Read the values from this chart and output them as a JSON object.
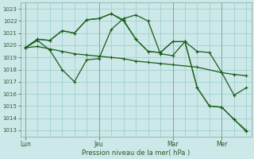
{
  "xlabel": "Pression niveau de la mer( hPa )",
  "bg_color": "#cce8e8",
  "grid_color": "#99cccc",
  "line_color_dark": "#1a5c1a",
  "line_color_mid": "#2e7d2e",
  "ylim": [
    1012.5,
    1023.5
  ],
  "yticks": [
    1013,
    1014,
    1015,
    1016,
    1017,
    1018,
    1019,
    1020,
    1021,
    1022,
    1023
  ],
  "xtick_labels": [
    "Lun",
    "Jeu",
    "Mar",
    "Mer"
  ],
  "xlim": [
    -0.2,
    9.2
  ],
  "xtick_pos": [
    0,
    3,
    6,
    8
  ],
  "line1_x": [
    0,
    0.5,
    1,
    1.5,
    2,
    2.5,
    3,
    3.5,
    4,
    4.5,
    5,
    5.5,
    6,
    6.5,
    7,
    7.5,
    8,
    8.5,
    9
  ],
  "line1_y": [
    1019.8,
    1020.4,
    1019.6,
    1018.0,
    1017.0,
    1018.8,
    1018.9,
    1021.3,
    1022.2,
    1022.5,
    1022.0,
    1019.3,
    1019.15,
    1020.3,
    1019.5,
    1019.4,
    1017.75,
    1015.9,
    1016.5
  ],
  "line2_x": [
    0,
    0.5,
    1,
    1.5,
    2,
    2.5,
    3,
    3.5,
    4,
    4.5,
    5,
    5.5,
    6,
    7,
    8,
    8.5,
    9
  ],
  "line2_y": [
    1019.8,
    1019.9,
    1019.7,
    1019.5,
    1019.3,
    1019.2,
    1019.1,
    1019.0,
    1018.9,
    1018.7,
    1018.6,
    1018.5,
    1018.4,
    1018.2,
    1017.75,
    1017.6,
    1017.5
  ],
  "line3_x": [
    0,
    0.5,
    1,
    1.5,
    2,
    2.5,
    3,
    3.5,
    4,
    4.5,
    5,
    5.5,
    6,
    6.5,
    7,
    7.5,
    8,
    8.5,
    9
  ],
  "line3_y": [
    1019.8,
    1020.5,
    1020.4,
    1021.2,
    1021.0,
    1022.1,
    1022.2,
    1022.6,
    1022.1,
    1020.5,
    1019.5,
    1019.4,
    1020.3,
    1020.3,
    1016.5,
    1015.0,
    1014.9,
    1013.9,
    1013.0
  ],
  "line4_x": [
    0,
    0.5,
    1,
    1.5,
    2,
    2.5,
    3,
    3.5,
    4,
    4.5,
    5,
    5.5,
    6,
    6.5,
    7,
    7.5,
    8,
    8.5,
    9
  ],
  "line4_y": [
    1019.8,
    1020.5,
    1020.4,
    1021.2,
    1021.0,
    1022.1,
    1022.2,
    1022.6,
    1022.0,
    1020.5,
    1019.5,
    1019.4,
    1020.3,
    1020.3,
    1016.5,
    1015.0,
    1014.9,
    1013.9,
    1012.9
  ],
  "lw": 0.9,
  "ms": 3.5
}
